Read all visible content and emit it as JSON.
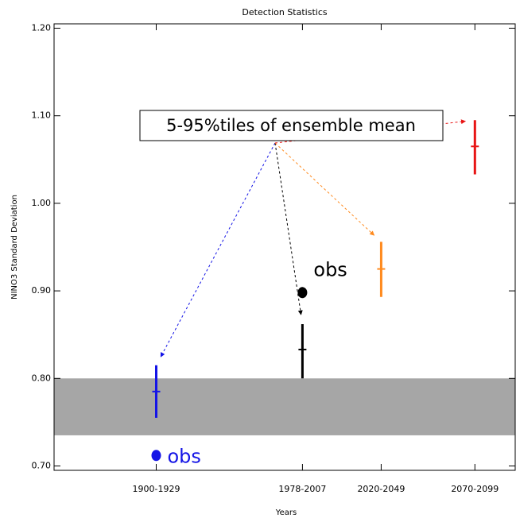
{
  "chart_data": {
    "type": "errorbar",
    "title": "Detection Statistics",
    "xlabel": "Years",
    "ylabel": "NINO3 Standard Deviation",
    "xlim": [
      1860,
      2106
    ],
    "ylim": [
      0.695,
      1.205
    ],
    "xticks": [
      {
        "value": 1914.5,
        "label": "1900-1929"
      },
      {
        "value": 1992.5,
        "label": "1978-2007"
      },
      {
        "value": 2034.5,
        "label": "2020-2049"
      },
      {
        "value": 2084.5,
        "label": "2070-2099"
      }
    ],
    "yticks": [
      {
        "value": 0.7,
        "label": "0.70"
      },
      {
        "value": 0.8,
        "label": "0.80"
      },
      {
        "value": 0.9,
        "label": "0.90"
      },
      {
        "value": 1.0,
        "label": "1.00"
      },
      {
        "value": 1.1,
        "label": "1.10"
      },
      {
        "value": 1.2,
        "label": "1.20"
      }
    ],
    "band": {
      "low": 0.735,
      "high": 0.8,
      "color": "#a6a6a6"
    },
    "series": [
      {
        "color": "#1414e6",
        "x": 1914.5,
        "value": 0.785,
        "low": 0.755,
        "high": 0.815
      },
      {
        "color": "#000000",
        "x": 1992.5,
        "value": 0.833,
        "low": 0.8,
        "high": 0.862
      },
      {
        "color": "#ff8a1e",
        "x": 2034.5,
        "value": 0.925,
        "low": 0.893,
        "high": 0.956
      },
      {
        "color": "#e81414",
        "x": 2084.5,
        "value": 1.065,
        "low": 1.033,
        "high": 1.095
      }
    ],
    "obs": [
      {
        "x": 1914.5,
        "value": 0.712,
        "label": "obs",
        "color": "#1414e6"
      },
      {
        "x": 1992.5,
        "value": 0.898,
        "label": "obs",
        "color": "#000000"
      }
    ],
    "annotation": "5-95%tiles of ensemble mean"
  }
}
